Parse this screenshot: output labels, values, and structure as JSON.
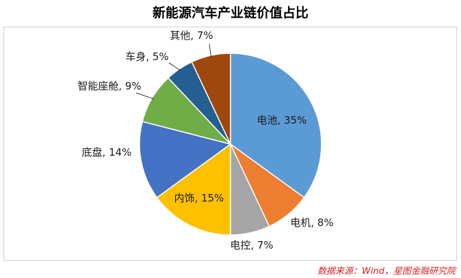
{
  "title": "新能源汽车产业链价值占比",
  "source": "数据来源：Wind，星图金融研究院",
  "chart_data": {
    "type": "pie",
    "title": "新能源汽车产业链价值占比",
    "unit": "%",
    "slices": [
      {
        "label": "电池",
        "value": 35,
        "color": "#5b9bd5",
        "text": "电池, 35%"
      },
      {
        "label": "电机",
        "value": 8,
        "color": "#ed7d31",
        "text": "电机, 8%"
      },
      {
        "label": "电控",
        "value": 7,
        "color": "#a5a5a5",
        "text": "电控, 7%"
      },
      {
        "label": "内饰",
        "value": 15,
        "color": "#ffc000",
        "text": "内饰, 15%"
      },
      {
        "label": "底盘",
        "value": 14,
        "color": "#4472c4",
        "text": "底盘, 14%"
      },
      {
        "label": "智能座舱",
        "value": 9,
        "color": "#70ad47",
        "text": "智能座舱, 9%"
      },
      {
        "label": "车身",
        "value": 5,
        "color": "#255e91",
        "text": "车身, 5%"
      },
      {
        "label": "其他",
        "value": 7,
        "color": "#9e480e",
        "text": "其他, 7%"
      }
    ]
  }
}
